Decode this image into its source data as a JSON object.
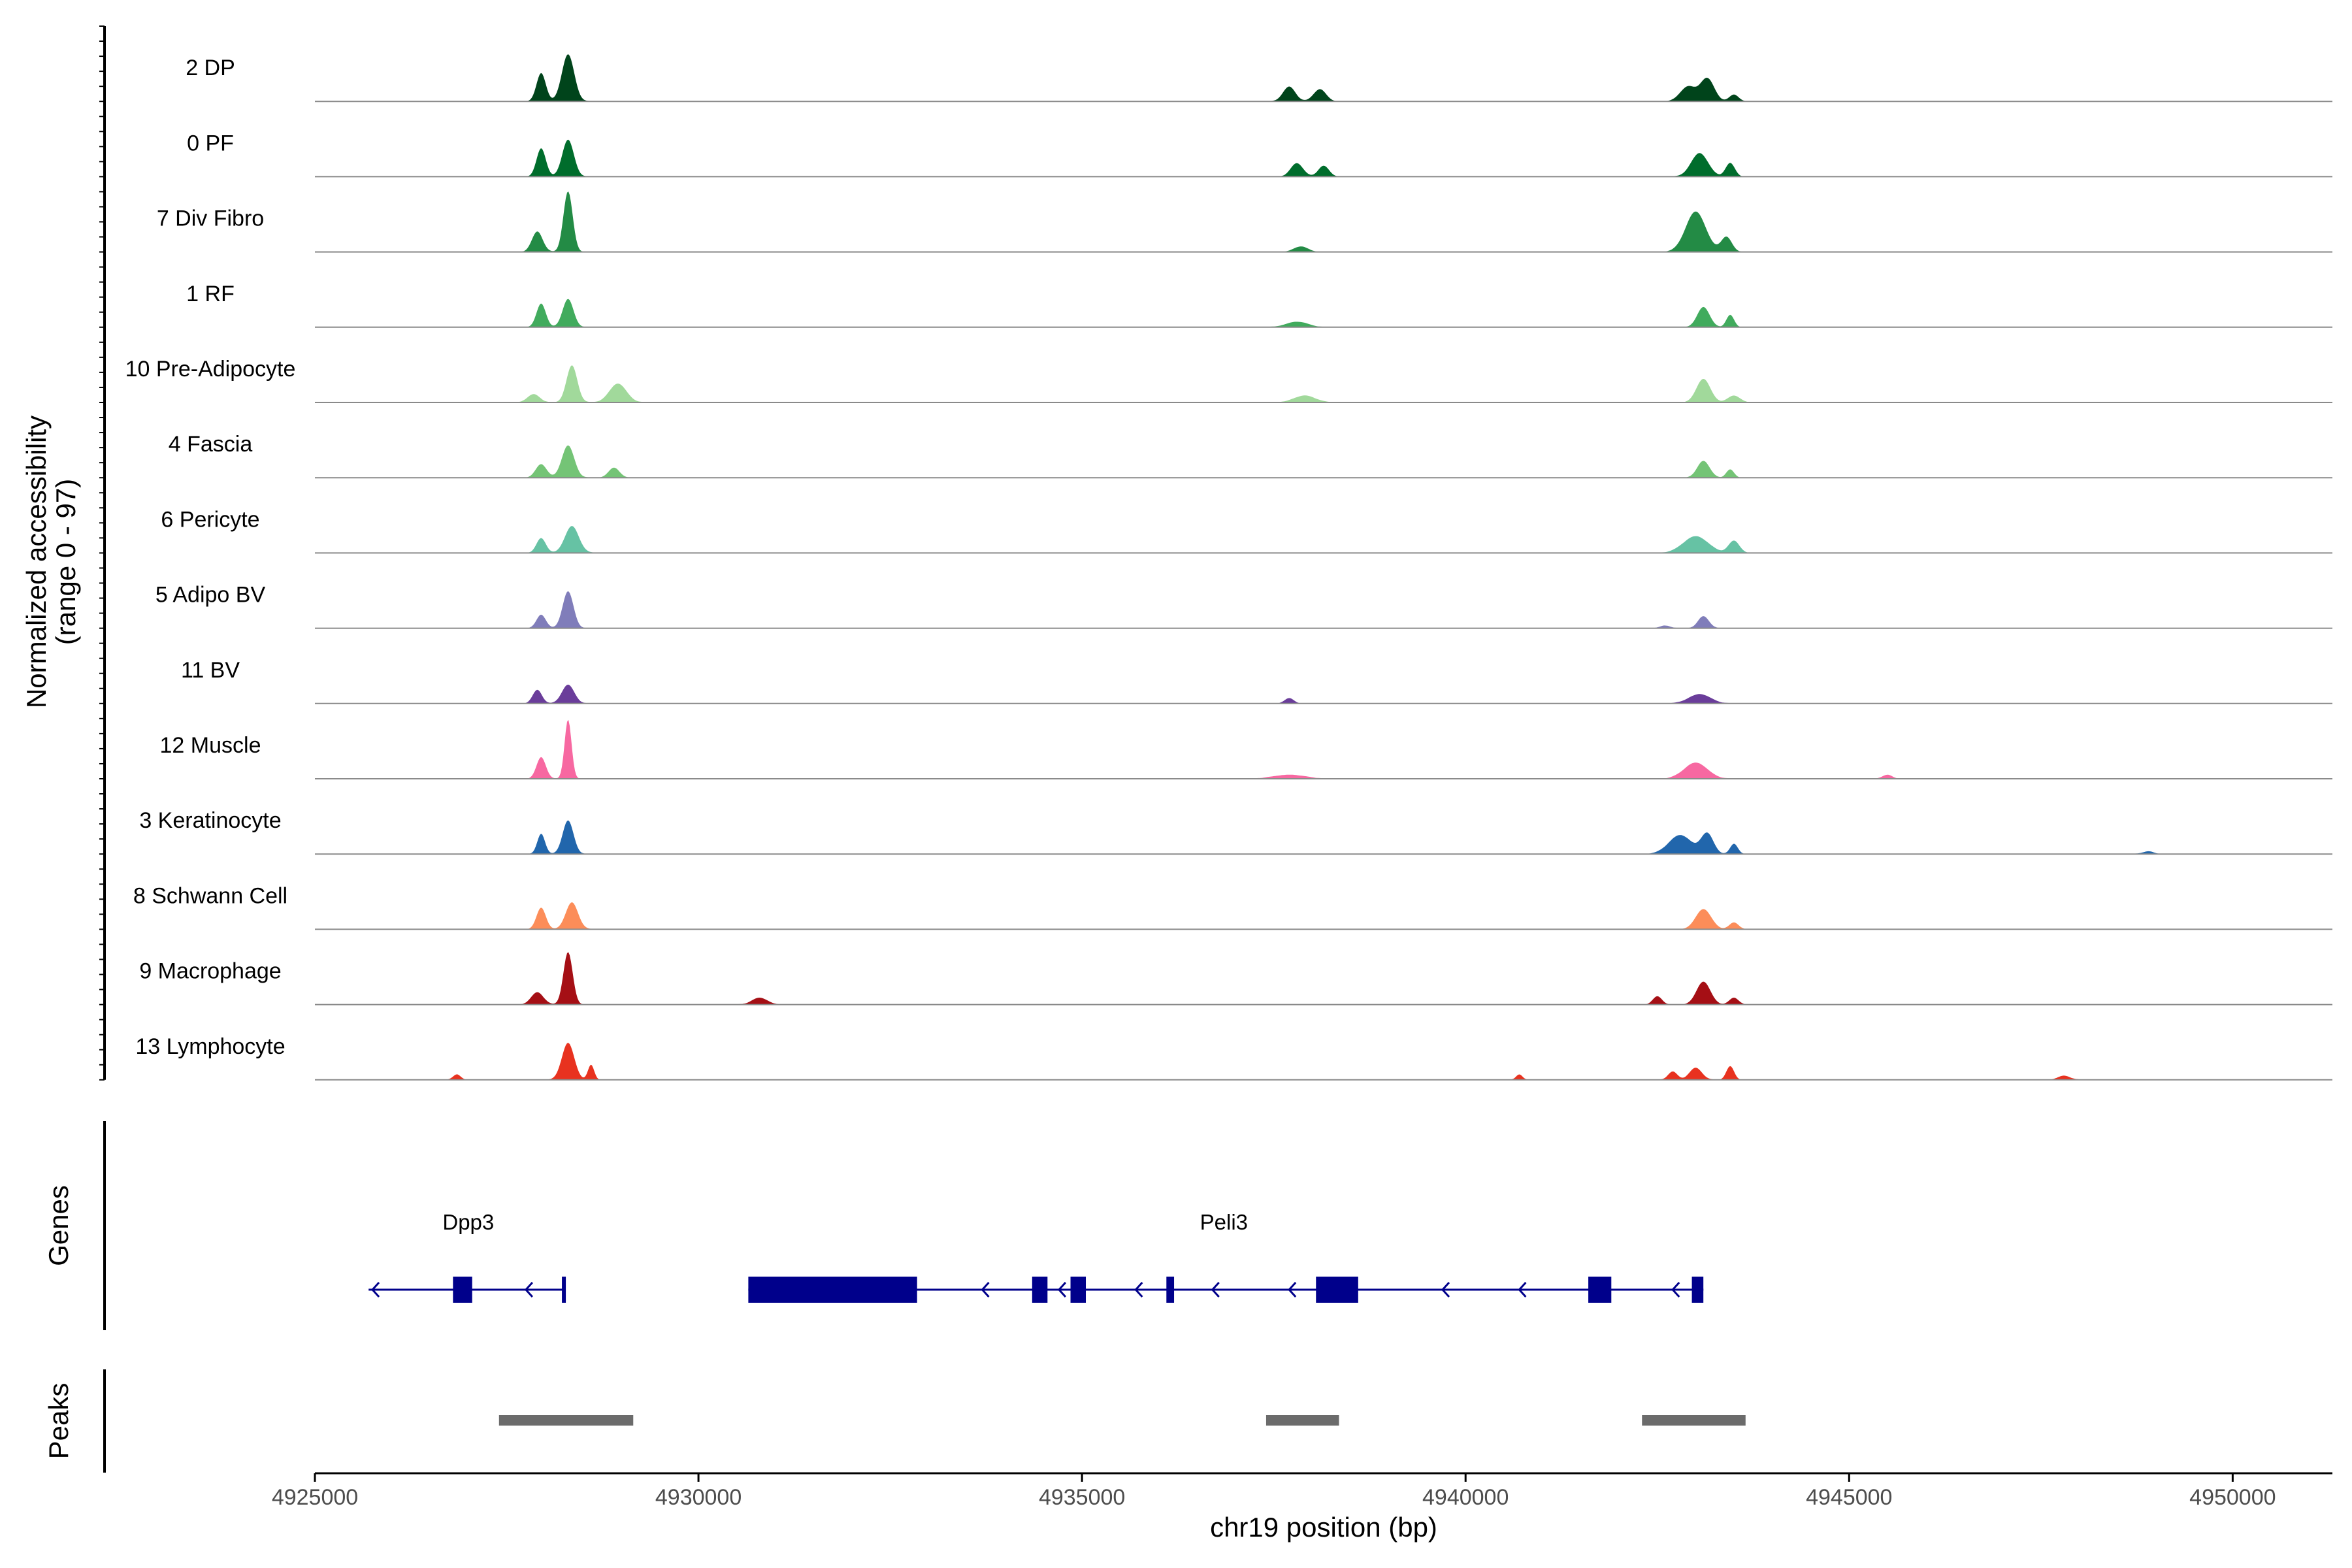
{
  "chart_data": {
    "type": "area",
    "chromosome": "chr19",
    "xlim": [
      4925000,
      4951300
    ],
    "xlabel": "chr19 position (bp)",
    "x_ticks": [
      4925000,
      4930000,
      4935000,
      4940000,
      4945000,
      4950000
    ],
    "x_tick_labels": [
      "4925000",
      "4930000",
      "4935000",
      "4940000",
      "4945000",
      "4950000"
    ],
    "ylabel": "Normalized accessibility",
    "ylabel_range": "(range 0 - 97)",
    "y_range": [
      0,
      97
    ],
    "series": [
      {
        "name": "2 DP",
        "color": "#00441b",
        "peaks": [
          [
            4927950,
            42,
            60
          ],
          [
            4928300,
            70,
            80
          ],
          [
            4937700,
            22,
            80
          ],
          [
            4938100,
            18,
            80
          ],
          [
            4942900,
            22,
            100
          ],
          [
            4943150,
            34,
            90
          ],
          [
            4943500,
            10,
            60
          ]
        ]
      },
      {
        "name": "0 PF",
        "color": "#006d2c",
        "peaks": [
          [
            4927950,
            42,
            60
          ],
          [
            4928300,
            55,
            75
          ],
          [
            4937800,
            20,
            80
          ],
          [
            4938150,
            16,
            70
          ],
          [
            4943050,
            35,
            110
          ],
          [
            4943450,
            20,
            60
          ]
        ]
      },
      {
        "name": "7 Div Fibro",
        "color": "#238b45",
        "peaks": [
          [
            4927900,
            30,
            70
          ],
          [
            4928300,
            90,
            60
          ],
          [
            4937850,
            8,
            90
          ],
          [
            4943000,
            60,
            130
          ],
          [
            4943400,
            22,
            70
          ]
        ]
      },
      {
        "name": "1 RF",
        "color": "#41ab5d",
        "peaks": [
          [
            4927950,
            35,
            60
          ],
          [
            4928300,
            42,
            70
          ],
          [
            4937800,
            8,
            140
          ],
          [
            4943100,
            30,
            80
          ],
          [
            4943450,
            18,
            50
          ]
        ]
      },
      {
        "name": "10 Pre-Adipocyte",
        "color": "#a1d99b",
        "peaks": [
          [
            4927850,
            12,
            80
          ],
          [
            4928350,
            55,
            70
          ],
          [
            4928950,
            28,
            110
          ],
          [
            4937900,
            10,
            140
          ],
          [
            4943100,
            35,
            90
          ],
          [
            4943500,
            10,
            80
          ]
        ]
      },
      {
        "name": "4 Fascia",
        "color": "#74c476",
        "peaks": [
          [
            4927950,
            20,
            70
          ],
          [
            4928300,
            48,
            80
          ],
          [
            4928900,
            15,
            70
          ],
          [
            4943100,
            25,
            80
          ],
          [
            4943450,
            12,
            50
          ]
        ]
      },
      {
        "name": "6 Pericyte",
        "color": "#66c2a4",
        "peaks": [
          [
            4927950,
            22,
            60
          ],
          [
            4928350,
            40,
            90
          ],
          [
            4943000,
            25,
            160
          ],
          [
            4943500,
            18,
            70
          ]
        ]
      },
      {
        "name": "5 Adipo BV",
        "color": "#807dba",
        "peaks": [
          [
            4927950,
            20,
            60
          ],
          [
            4928300,
            55,
            70
          ],
          [
            4943100,
            18,
            70
          ],
          [
            4942600,
            4,
            60
          ]
        ]
      },
      {
        "name": "11 BV",
        "color": "#6a3d9a",
        "peaks": [
          [
            4927900,
            20,
            60
          ],
          [
            4928300,
            28,
            80
          ],
          [
            4937700,
            8,
            60
          ],
          [
            4943050,
            14,
            140
          ]
        ]
      },
      {
        "name": "12 Muscle",
        "color": "#f768a1",
        "peaks": [
          [
            4927950,
            32,
            60
          ],
          [
            4928300,
            88,
            45
          ],
          [
            4937700,
            6,
            200
          ],
          [
            4943000,
            24,
            150
          ],
          [
            4945500,
            6,
            60
          ]
        ]
      },
      {
        "name": "3 Keratinocyte",
        "color": "#2166ac",
        "peaks": [
          [
            4927950,
            30,
            50
          ],
          [
            4928300,
            50,
            70
          ],
          [
            4942800,
            28,
            150
          ],
          [
            4943150,
            30,
            80
          ],
          [
            4943500,
            15,
            50
          ],
          [
            4948900,
            4,
            70
          ]
        ]
      },
      {
        "name": "8 Schwann Cell",
        "color": "#fc8d59",
        "peaks": [
          [
            4927950,
            32,
            60
          ],
          [
            4928350,
            40,
            80
          ],
          [
            4943100,
            30,
            100
          ],
          [
            4943500,
            10,
            60
          ]
        ]
      },
      {
        "name": "9 Macrophage",
        "color": "#a50f15",
        "peaks": [
          [
            4927900,
            18,
            80
          ],
          [
            4928300,
            78,
            60
          ],
          [
            4930800,
            10,
            100
          ],
          [
            4943100,
            34,
            90
          ],
          [
            4942500,
            12,
            60
          ],
          [
            4943500,
            10,
            60
          ]
        ]
      },
      {
        "name": "13 Lymphocyte",
        "color": "#e8321f",
        "peaks": [
          [
            4926850,
            8,
            50
          ],
          [
            4928300,
            55,
            80
          ],
          [
            4928600,
            22,
            40
          ],
          [
            4940700,
            8,
            40
          ],
          [
            4942700,
            12,
            60
          ],
          [
            4943000,
            18,
            80
          ],
          [
            4943450,
            20,
            50
          ],
          [
            4947800,
            6,
            80
          ]
        ]
      }
    ],
    "genes_track_label": "Genes",
    "genes": [
      {
        "name": "Dpp3",
        "strand": "-",
        "start": 4925700,
        "end": 4928250,
        "exons": [
          [
            4926800,
            4927050
          ],
          [
            4928220,
            4928260
          ]
        ]
      },
      {
        "name": "Peli3",
        "strand": "-",
        "start": 4930650,
        "end": 4943100,
        "exons": [
          [
            4930650,
            4932850
          ],
          [
            4934350,
            4934550
          ],
          [
            4934850,
            4935050
          ],
          [
            4936100,
            4936200
          ],
          [
            4938050,
            4938600
          ],
          [
            4941600,
            4941900
          ],
          [
            4942950,
            4943100
          ]
        ]
      }
    ],
    "peaks_track_label": "Peaks",
    "peak_regions": [
      [
        4927400,
        4929150
      ],
      [
        4937400,
        4938350
      ],
      [
        4942300,
        4943650
      ]
    ]
  }
}
